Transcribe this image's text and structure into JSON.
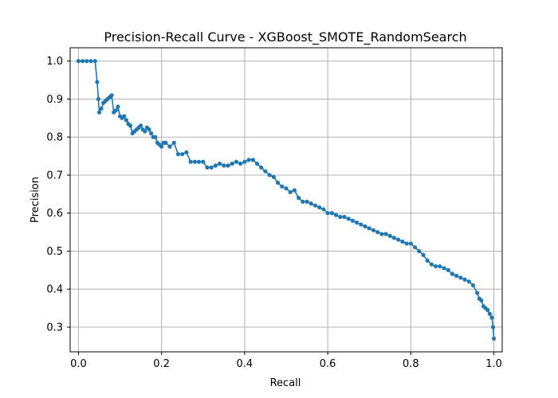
{
  "chart_data": {
    "type": "line",
    "title": "Precision-Recall Curve - XGBoost_SMOTE_RandomSearch",
    "xlabel": "Recall",
    "ylabel": "Precision",
    "xlim": [
      -0.02,
      1.02
    ],
    "ylim": [
      0.235,
      1.035
    ],
    "xticks": [
      0.0,
      0.2,
      0.4,
      0.6,
      0.8,
      1.0
    ],
    "xtick_labels": [
      "0.0",
      "0.2",
      "0.4",
      "0.6",
      "0.8",
      "1.0"
    ],
    "yticks": [
      0.3,
      0.4,
      0.5,
      0.6,
      0.7,
      0.8,
      0.9,
      1.0
    ],
    "ytick_labels": [
      "0.3",
      "0.4",
      "0.5",
      "0.6",
      "0.7",
      "0.8",
      "0.9",
      "1.0"
    ],
    "grid": true,
    "marker": "dot",
    "color": "#1f77b4",
    "series": [
      {
        "x": [
          0.0,
          0.01,
          0.02,
          0.03,
          0.04,
          0.045,
          0.048,
          0.05,
          0.055,
          0.06,
          0.065,
          0.07,
          0.075,
          0.08,
          0.085,
          0.09,
          0.095,
          0.1,
          0.105,
          0.11,
          0.115,
          0.12,
          0.125,
          0.13,
          0.135,
          0.14,
          0.145,
          0.15,
          0.155,
          0.16,
          0.165,
          0.17,
          0.175,
          0.18,
          0.185,
          0.19,
          0.195,
          0.2,
          0.205,
          0.21,
          0.22,
          0.23,
          0.24,
          0.25,
          0.26,
          0.27,
          0.28,
          0.29,
          0.3,
          0.31,
          0.32,
          0.33,
          0.34,
          0.35,
          0.36,
          0.37,
          0.38,
          0.39,
          0.4,
          0.41,
          0.42,
          0.43,
          0.44,
          0.45,
          0.46,
          0.47,
          0.48,
          0.49,
          0.5,
          0.51,
          0.52,
          0.53,
          0.54,
          0.55,
          0.56,
          0.57,
          0.58,
          0.59,
          0.6,
          0.61,
          0.62,
          0.63,
          0.64,
          0.65,
          0.66,
          0.67,
          0.68,
          0.69,
          0.7,
          0.71,
          0.72,
          0.73,
          0.74,
          0.75,
          0.76,
          0.77,
          0.78,
          0.79,
          0.8,
          0.81,
          0.82,
          0.83,
          0.84,
          0.85,
          0.86,
          0.87,
          0.88,
          0.89,
          0.9,
          0.91,
          0.92,
          0.93,
          0.94,
          0.95,
          0.96,
          0.965,
          0.97,
          0.975,
          0.98,
          0.985,
          0.99,
          0.995,
          0.998,
          1.0
        ],
        "y": [
          1.0,
          1.0,
          1.0,
          1.0,
          1.0,
          0.945,
          0.9,
          0.865,
          0.875,
          0.89,
          0.895,
          0.9,
          0.905,
          0.91,
          0.865,
          0.87,
          0.88,
          0.855,
          0.85,
          0.855,
          0.845,
          0.835,
          0.83,
          0.81,
          0.815,
          0.82,
          0.825,
          0.83,
          0.82,
          0.815,
          0.825,
          0.82,
          0.81,
          0.8,
          0.8,
          0.785,
          0.78,
          0.775,
          0.785,
          0.785,
          0.775,
          0.785,
          0.755,
          0.755,
          0.76,
          0.735,
          0.735,
          0.735,
          0.735,
          0.72,
          0.72,
          0.725,
          0.73,
          0.725,
          0.725,
          0.73,
          0.735,
          0.73,
          0.735,
          0.74,
          0.74,
          0.73,
          0.72,
          0.71,
          0.7,
          0.695,
          0.68,
          0.67,
          0.665,
          0.655,
          0.66,
          0.64,
          0.63,
          0.63,
          0.625,
          0.62,
          0.615,
          0.61,
          0.6,
          0.6,
          0.595,
          0.59,
          0.59,
          0.585,
          0.58,
          0.575,
          0.57,
          0.565,
          0.56,
          0.555,
          0.55,
          0.545,
          0.545,
          0.54,
          0.535,
          0.53,
          0.525,
          0.52,
          0.52,
          0.51,
          0.5,
          0.49,
          0.475,
          0.465,
          0.46,
          0.46,
          0.455,
          0.45,
          0.44,
          0.435,
          0.43,
          0.425,
          0.42,
          0.41,
          0.39,
          0.375,
          0.37,
          0.355,
          0.35,
          0.345,
          0.335,
          0.325,
          0.3,
          0.27
        ]
      }
    ]
  }
}
